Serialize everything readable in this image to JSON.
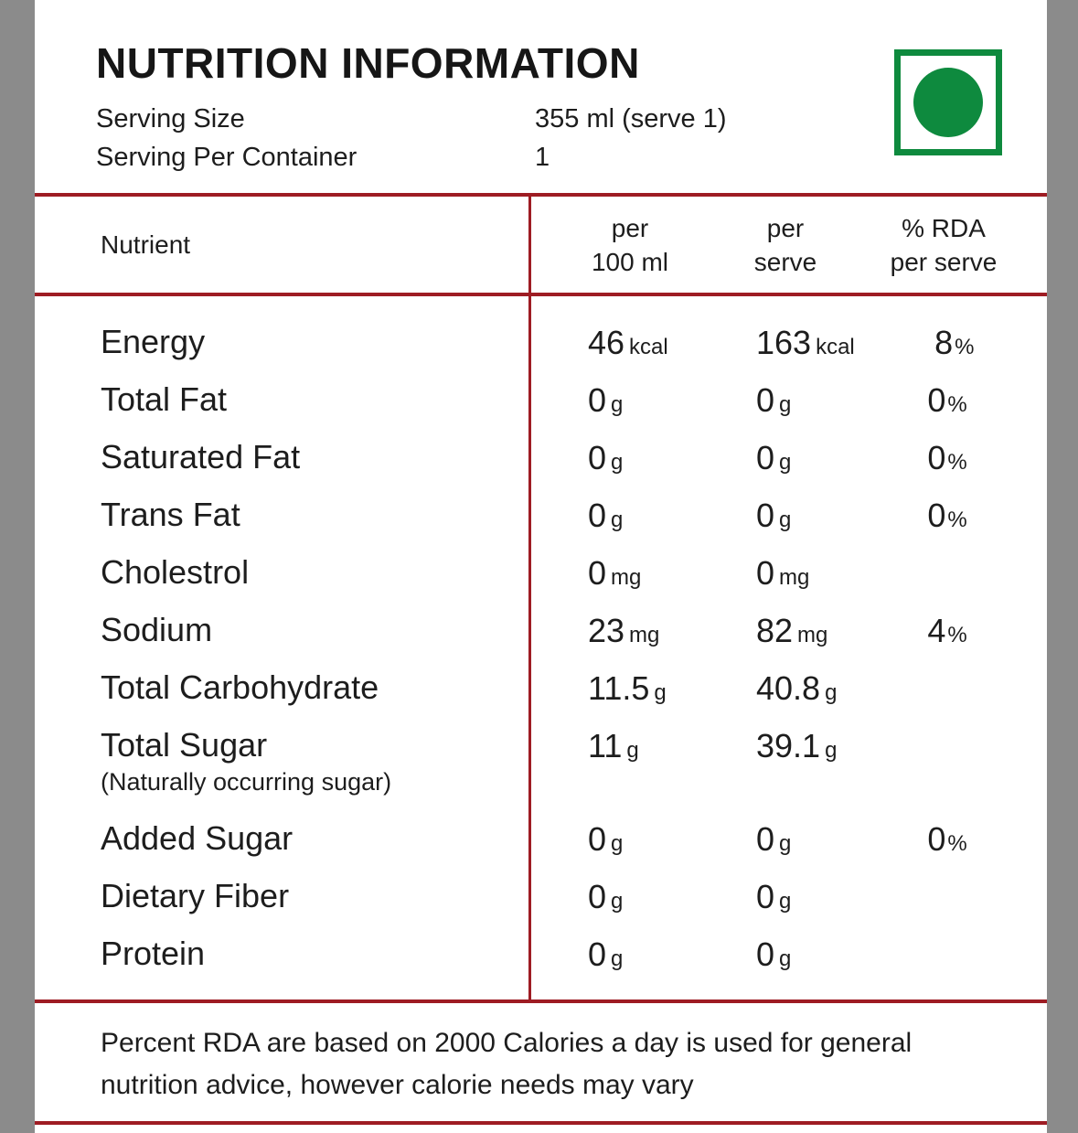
{
  "title": "NUTRITION INFORMATION",
  "serving": {
    "size_label": "Serving Size",
    "size_value": "355 ml (serve 1)",
    "container_label": "Serving Per Container",
    "container_value": "1"
  },
  "veg_mark": {
    "meaning": "vegetarian-mark",
    "color": "#0e8a3e"
  },
  "table": {
    "headers": {
      "nutrient": "Nutrient",
      "col1_line1": "per",
      "col1_line2": "100 ml",
      "col2_line1": "per",
      "col2_line2": "serve",
      "col3_line1": "% RDA",
      "col3_line2": "per serve"
    },
    "rows": [
      {
        "nutrient": "Energy",
        "note": "",
        "per100_val": "46",
        "per100_unit": "kcal",
        "serve_val": "163",
        "serve_unit": "kcal",
        "rda_val": "8",
        "rda_unit": "%"
      },
      {
        "nutrient": "Total Fat",
        "note": "",
        "per100_val": "0",
        "per100_unit": "g",
        "serve_val": "0",
        "serve_unit": "g",
        "rda_val": "0",
        "rda_unit": "%"
      },
      {
        "nutrient": "Saturated Fat",
        "note": "",
        "per100_val": "0",
        "per100_unit": "g",
        "serve_val": "0",
        "serve_unit": "g",
        "rda_val": "0",
        "rda_unit": "%"
      },
      {
        "nutrient": "Trans Fat",
        "note": "",
        "per100_val": "0",
        "per100_unit": "g",
        "serve_val": "0",
        "serve_unit": "g",
        "rda_val": "0",
        "rda_unit": "%"
      },
      {
        "nutrient": "Cholestrol",
        "note": "",
        "per100_val": "0",
        "per100_unit": "mg",
        "serve_val": "0",
        "serve_unit": "mg",
        "rda_val": "",
        "rda_unit": ""
      },
      {
        "nutrient": "Sodium",
        "note": "",
        "per100_val": "23",
        "per100_unit": "mg",
        "serve_val": "82",
        "serve_unit": "mg",
        "rda_val": "4",
        "rda_unit": "%"
      },
      {
        "nutrient": "Total Carbohydrate",
        "note": "",
        "per100_val": "11.5",
        "per100_unit": "g",
        "serve_val": "40.8",
        "serve_unit": "g",
        "rda_val": "",
        "rda_unit": ""
      },
      {
        "nutrient": "Total Sugar",
        "note": "(Naturally occurring sugar)",
        "per100_val": "11",
        "per100_unit": "g",
        "serve_val": "39.1",
        "serve_unit": "g",
        "rda_val": "",
        "rda_unit": ""
      },
      {
        "nutrient": "Added Sugar",
        "note": "",
        "per100_val": "0",
        "per100_unit": "g",
        "serve_val": "0",
        "serve_unit": "g",
        "rda_val": "0",
        "rda_unit": "%"
      },
      {
        "nutrient": "Dietary Fiber",
        "note": "",
        "per100_val": "0",
        "per100_unit": "g",
        "serve_val": "0",
        "serve_unit": "g",
        "rda_val": "",
        "rda_unit": ""
      },
      {
        "nutrient": "Protein",
        "note": "",
        "per100_val": "0",
        "per100_unit": "g",
        "serve_val": "0",
        "serve_unit": "g",
        "rda_val": "",
        "rda_unit": ""
      }
    ]
  },
  "footer": {
    "line1": "Percent RDA are based on 2000 Calories a day is used for general",
    "line2": "nutrition advice, however calorie needs may vary"
  },
  "colors": {
    "border_red": "#9e1c23",
    "veg_green": "#0e8a3e",
    "edge_gray": "#8b8b8b",
    "text": "#1d1d1d"
  }
}
